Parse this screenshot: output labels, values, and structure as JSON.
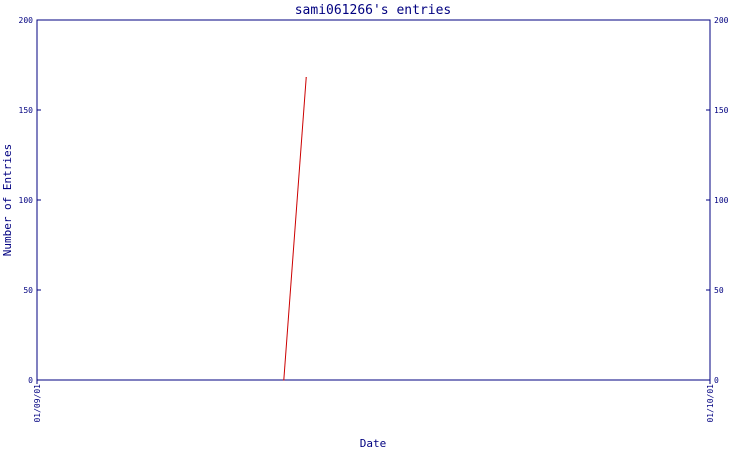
{
  "chart_data": {
    "type": "line",
    "title": "sami061266's entries",
    "xlabel": "Date",
    "ylabel": "Number of Entries",
    "x_ticks": [
      "01/09/01",
      "01/10/01"
    ],
    "x_range": [
      "01/09/01",
      "01/10/01"
    ],
    "ylim": [
      0,
      200
    ],
    "y_ticks": [
      0,
      50,
      100,
      150,
      200
    ],
    "y_tick_labels": [
      "0",
      "50",
      "100",
      "150",
      "200"
    ],
    "right_axis_mirrors_left": true,
    "grid": false,
    "series": [
      {
        "color": "#cc0000",
        "points": [
          {
            "x": "01/09/12",
            "y": 0
          },
          {
            "x": "01/09/13",
            "y": 168
          }
        ]
      }
    ]
  }
}
